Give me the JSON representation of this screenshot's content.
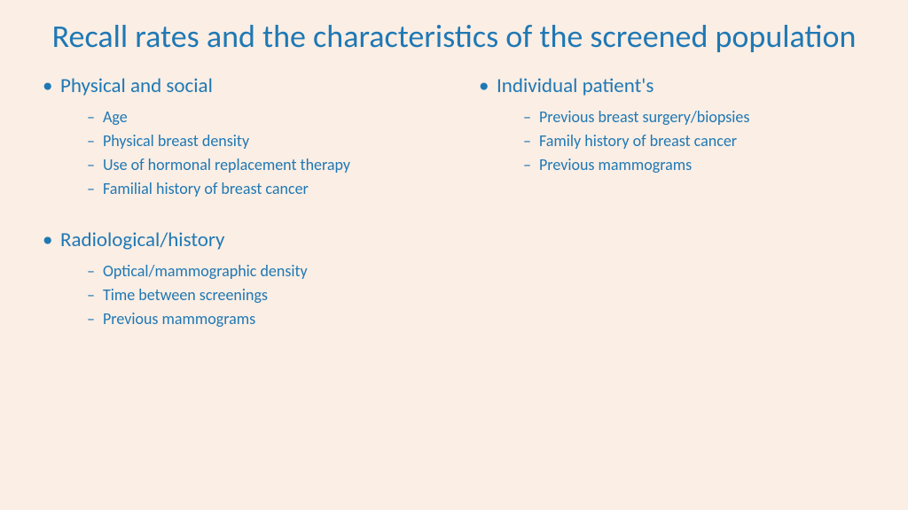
{
  "title": "Recall rates and the characteristics of the screened population",
  "colors": {
    "background": "#fbeee4",
    "text": "#1f78b4"
  },
  "left": {
    "section1": {
      "heading": "Physical and social",
      "items": [
        "Age",
        "Physical breast density",
        "Use of hormonal replacement therapy",
        "Familial history of breast cancer"
      ]
    },
    "section2": {
      "heading": "Radiological/history",
      "items": [
        "Optical/mammographic density",
        "Time between screenings",
        "Previous mammograms"
      ]
    }
  },
  "right": {
    "section1": {
      "heading": "Individual patient's",
      "items": [
        "Previous breast surgery/biopsies",
        "Family history of breast cancer",
        "Previous mammograms"
      ]
    }
  }
}
